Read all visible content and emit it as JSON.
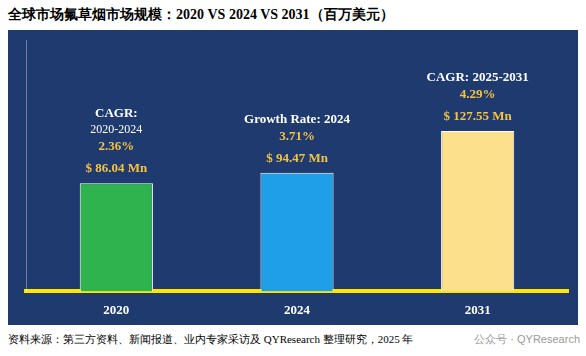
{
  "chart_data": {
    "type": "bar",
    "title": "全球市场氟草烟市场规模：2020 VS 2024 VS 2031（百万美元）",
    "categories": [
      "2020",
      "2024",
      "2031"
    ],
    "values": [
      86.04,
      94.47,
      127.55
    ],
    "value_labels": [
      "$ 86.04 Mn",
      "$ 94.47 Mn",
      "$ 127.55 Mn"
    ],
    "colors": [
      "#2eb34f",
      "#1e9fe8",
      "#fde08c"
    ],
    "ylim": [
      0,
      200
    ],
    "grid": false,
    "data_labels": true,
    "tick_labels": "x",
    "annotations": [
      {
        "category": "2020",
        "text": [
          "CAGR:",
          "2020-2024"
        ],
        "rate": "2.36%"
      },
      {
        "category": "2024",
        "text": [
          "Growth Rate: 2024"
        ],
        "rate": "3.71%"
      },
      {
        "category": "2031",
        "text": [
          "CAGR: 2025-2031"
        ],
        "rate": "4.29%"
      }
    ],
    "source": "资料来源：第三方资料、新闻报道、业内专家采访及 QYResearch 整理研究，2025 年",
    "watermark": "公众号 · QYResearch"
  }
}
